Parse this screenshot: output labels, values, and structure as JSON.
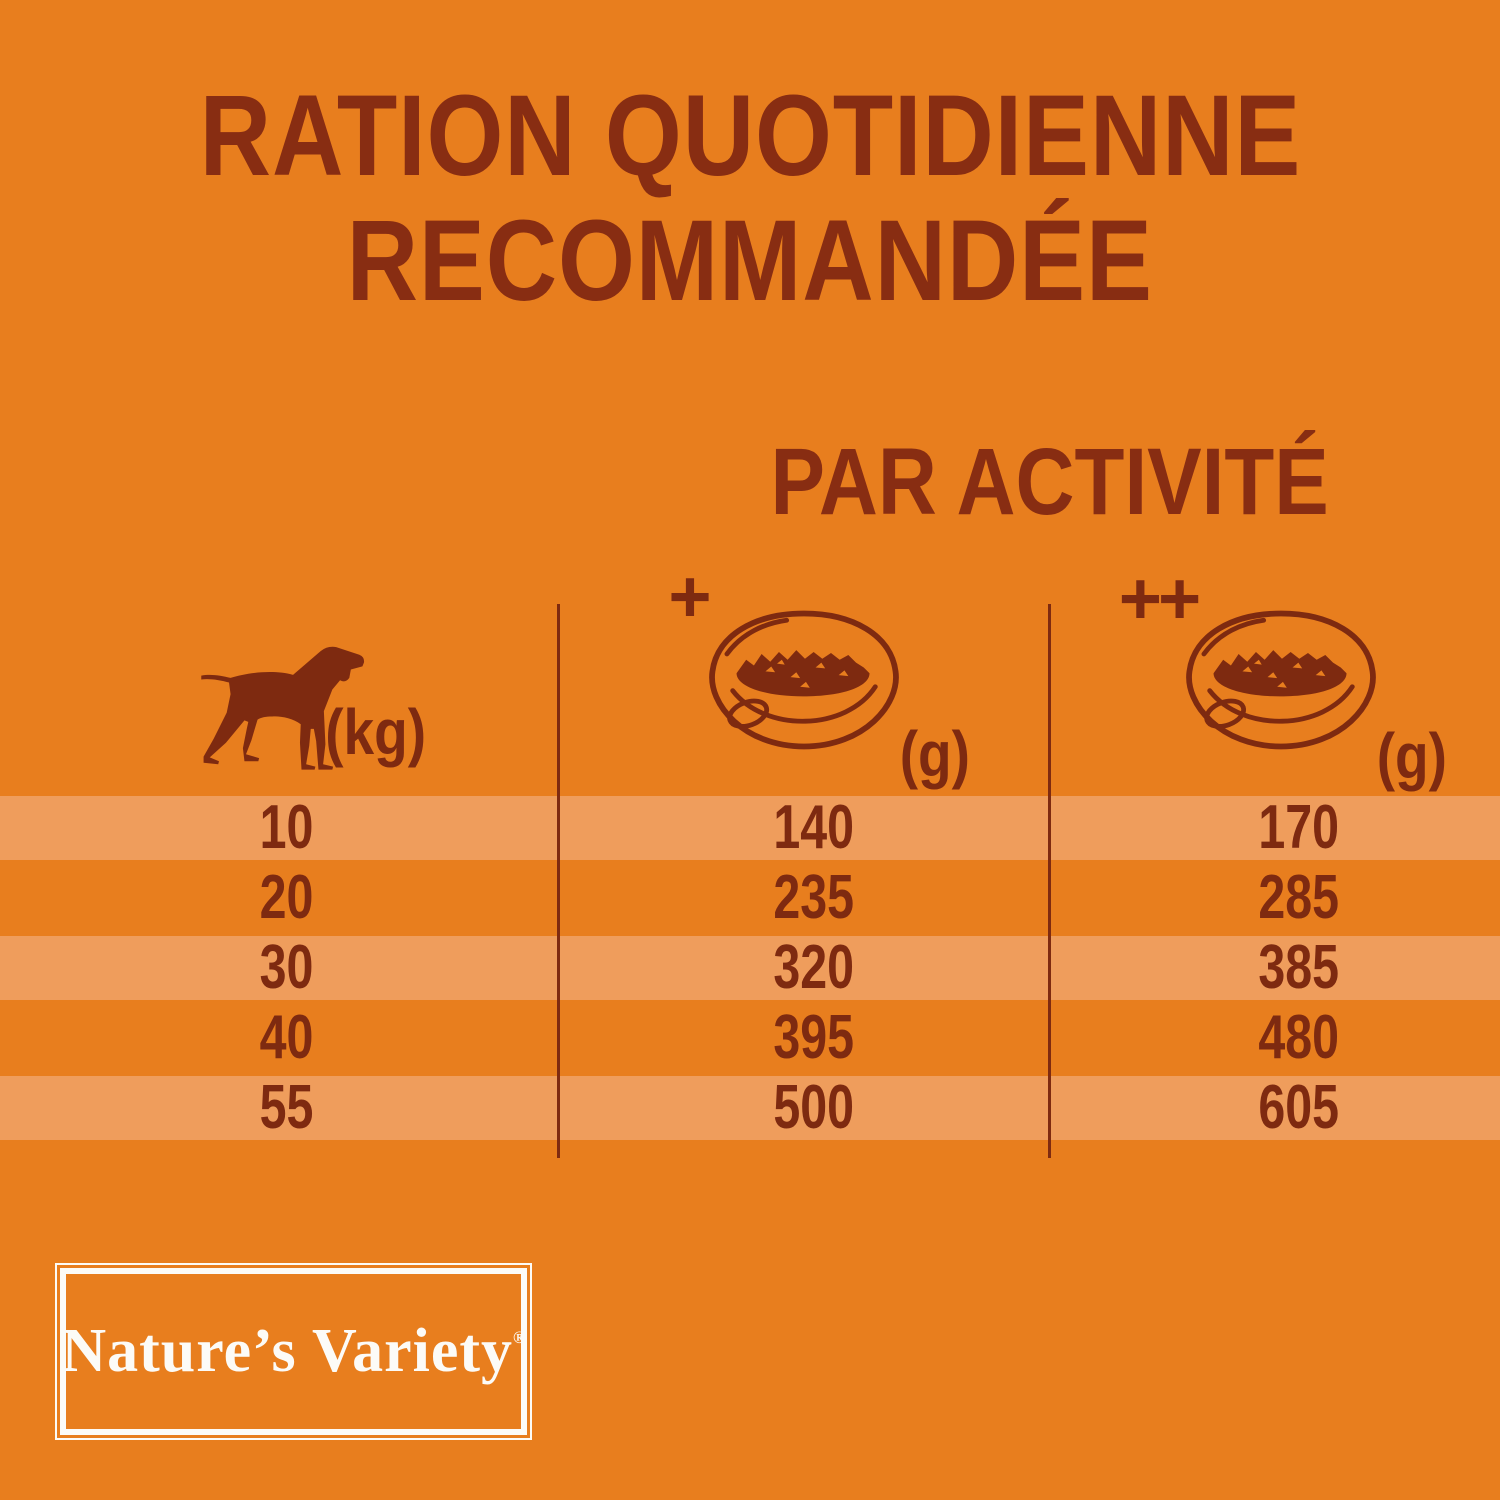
{
  "colors": {
    "bg": "#E87E1E",
    "stripe": "#EF9D5C",
    "ink": "#7E2A10",
    "title": "#882D12",
    "white": "#FCFBF7"
  },
  "title": {
    "line1": "RATION QUOTIDIENNE",
    "line2": "RECOMMANDÉE"
  },
  "subtitle": "PAR ACTIVITÉ",
  "table": {
    "weight_unit": "(kg)",
    "weight_icon": "dog-icon",
    "columns": [
      {
        "activity": "+",
        "icon": "dog-bowl-icon",
        "unit": "(g)"
      },
      {
        "activity": "++",
        "icon": "dog-bowl-icon",
        "unit": "(g)"
      }
    ],
    "rows": [
      {
        "kg": "10",
        "plus": "140",
        "plusplus": "170"
      },
      {
        "kg": "20",
        "plus": "235",
        "plusplus": "285"
      },
      {
        "kg": "30",
        "plus": "320",
        "plusplus": "385"
      },
      {
        "kg": "40",
        "plus": "395",
        "plusplus": "480"
      },
      {
        "kg": "55",
        "plus": "500",
        "plusplus": "605"
      }
    ]
  },
  "logo": {
    "brand": "Nature’s Variety",
    "registered": "®"
  }
}
